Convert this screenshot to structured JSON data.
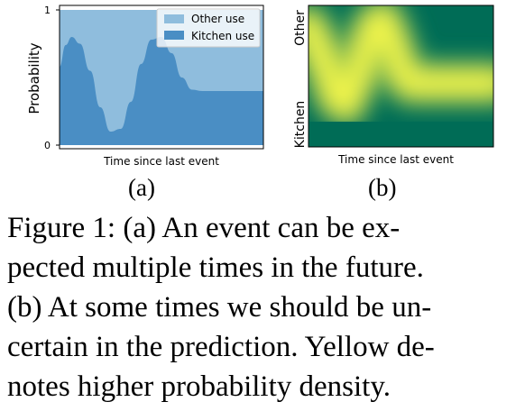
{
  "chart_data": [
    {
      "type": "area",
      "panel": "(a)",
      "xlabel": "Time since last event",
      "ylabel": "Probability",
      "ylim": [
        0,
        1
      ],
      "yticks": [
        "0",
        "1"
      ],
      "legend_position": "top-right",
      "series": [
        {
          "name": "Other use",
          "color": "#8fbddd"
        },
        {
          "name": "Kitchen use",
          "color": "#4a8ec4"
        }
      ],
      "x": [
        0,
        0.03,
        0.06,
        0.1,
        0.15,
        0.2,
        0.25,
        0.3,
        0.35,
        0.4,
        0.45,
        0.5,
        0.55,
        0.6,
        0.65,
        0.7,
        0.75,
        0.8,
        0.9,
        1.0
      ],
      "kitchen_use": [
        0.58,
        0.74,
        0.8,
        0.75,
        0.55,
        0.28,
        0.1,
        0.12,
        0.32,
        0.6,
        0.78,
        0.8,
        0.68,
        0.5,
        0.41,
        0.4,
        0.4,
        0.4,
        0.4,
        0.4
      ],
      "total": [
        1,
        1,
        1,
        1,
        1,
        1,
        1,
        1,
        1,
        1,
        1,
        1,
        1,
        1,
        1,
        1,
        1,
        1,
        1,
        1
      ]
    },
    {
      "type": "heatmap",
      "panel": "(b)",
      "xlabel": "Time since last event",
      "ylabels": [
        "Other",
        "Kitchen"
      ],
      "colormap": [
        "#006c56",
        "#2f9a57",
        "#90c64d",
        "#f2f54c"
      ],
      "peak_path_x": [
        0,
        0.05,
        0.1,
        0.15,
        0.2,
        0.25,
        0.3,
        0.35,
        0.4,
        0.45,
        0.5,
        0.55,
        0.6,
        0.7,
        0.8,
        0.9,
        1.0
      ],
      "peak_path_y": [
        0.85,
        0.7,
        0.55,
        0.35,
        0.3,
        0.45,
        0.65,
        0.85,
        0.9,
        0.75,
        0.55,
        0.45,
        0.45,
        0.45,
        0.45,
        0.45,
        0.45
      ]
    }
  ],
  "labels": {
    "a": "(a)",
    "b": "(b)"
  },
  "caption_lines": [
    "Figure 1: (a) An event can be ex-",
    "pected multiple times in the future.",
    "(b) At some times we should be un-",
    "certain in the prediction. Yellow de-",
    "notes higher probability density."
  ]
}
